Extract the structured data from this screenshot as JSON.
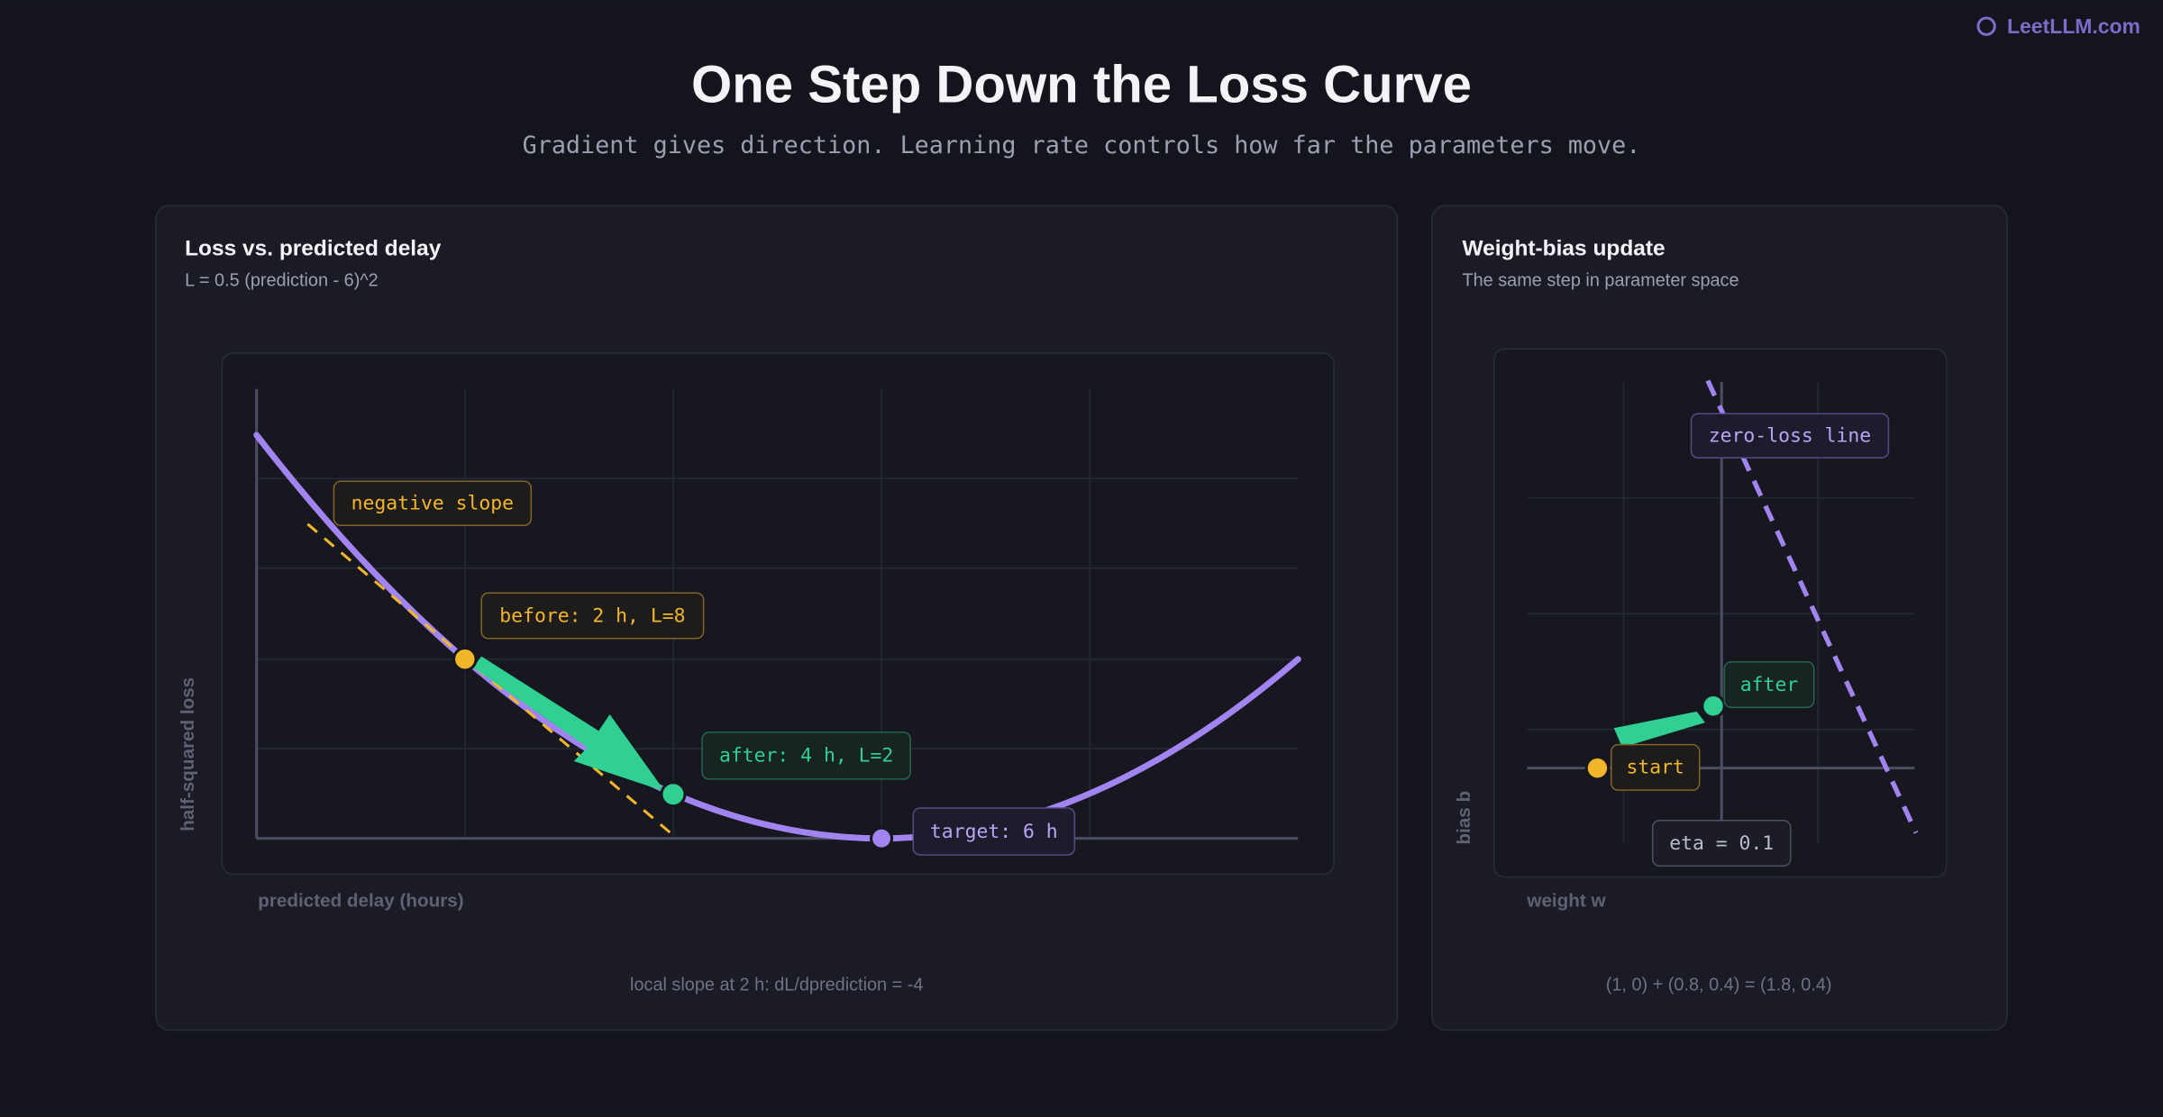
{
  "header": {
    "brand": "LeetLLM.com",
    "title": "One Step Down the Loss Curve",
    "subtitle": "Gradient gives direction. Learning rate controls how far the parameters move."
  },
  "panels": [
    {
      "title": "Loss vs. predicted delay",
      "subtitle": "L = 0.5 (prediction - 6)^2",
      "y_label": "half-squared loss",
      "x_label": "predicted delay (hours)",
      "footer": "local slope at 2 h: dL/dprediction = -4",
      "annotations": [
        "negative slope",
        "before: 2 h, L=8",
        "after: 4 h, L=2",
        "target: 6 h"
      ]
    },
    {
      "title": "Weight-bias update",
      "subtitle": "The same step in parameter space",
      "y_label": "bias b",
      "x_label": "weight w",
      "footer": "(1, 0) + (0.8, 0.4) = (1.8, 0.4)",
      "annotations": [
        "zero-loss line",
        "after",
        "start",
        "eta = 0.1"
      ]
    }
  ]
}
